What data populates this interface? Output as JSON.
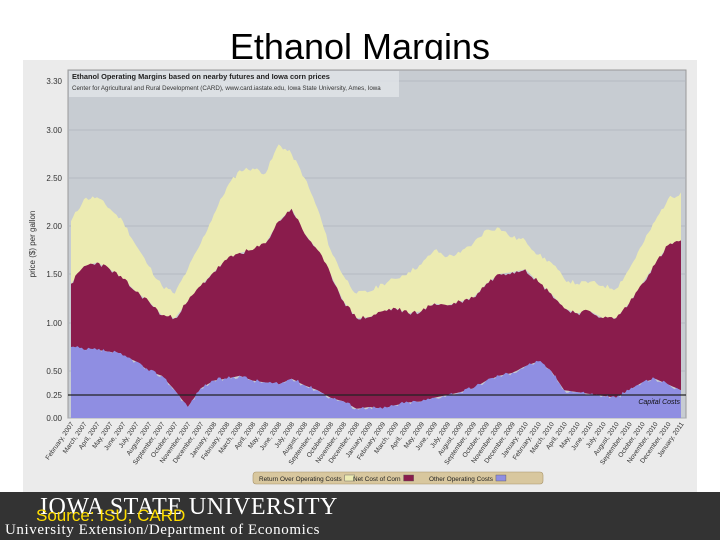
{
  "slide": {
    "title": "Ethanol Margins",
    "source_note": "Source: ISU, CARD",
    "footer_logo": "IOWA STATE UNIVERSITY",
    "footer_subtitle": "University Extension/Department of Economics"
  },
  "colors": {
    "return_over": "#ecebb2",
    "net_corn": "#8a1c4c",
    "other_costs": "#8f8ee2",
    "plot_bg": "#c7ccd2",
    "frame_bg": "#ebebeb",
    "capital_line": "#222222",
    "footer_bg": "#333333",
    "source_text": "#ffdd00"
  },
  "chart_data": {
    "type": "area",
    "stacked": true,
    "title": "Ethanol Operating Margins based on nearby futures and Iowa corn prices",
    "subtitle": "Center for Agricultural and Rural Development (CARD), www.card.iastate.edu, Iowa State University, Ames, Iowa",
    "ylabel": "price ($) per gallon",
    "y_ticks": [
      "3.30",
      "3.00",
      "2.50",
      "2.00",
      "1.50",
      "1.00",
      "0.50",
      "0.25",
      "0.00"
    ],
    "grid": true,
    "legend_placement": "bottom",
    "x_tick_labels": [
      "February, 2007",
      "March, 2007",
      "April, 2007",
      "May, 2007",
      "June, 2007",
      "July, 2007",
      "August, 2007",
      "September, 2007",
      "October, 2007",
      "November, 2007",
      "December, 2007",
      "January, 2008",
      "February, 2008",
      "March, 2008",
      "April, 2008",
      "May, 2008",
      "June, 2008",
      "July, 2008",
      "August, 2008",
      "September, 2008",
      "October, 2008",
      "November, 2008",
      "December, 2008",
      "January, 2009",
      "February, 2009",
      "March, 2009",
      "April, 2009",
      "May, 2009",
      "June, 2009",
      "July, 2009",
      "August, 2009",
      "September, 2009",
      "October, 2009",
      "November, 2009",
      "December, 2009",
      "January, 2010",
      "February, 2010",
      "March, 2010",
      "April, 2010",
      "May, 2010",
      "June, 2010",
      "July, 2010",
      "August, 2010",
      "September, 2010",
      "October, 2010",
      "November, 2010",
      "December, 2010",
      "January, 2011"
    ],
    "legend": [
      {
        "label": "Return Over Operating Costs",
        "color_key": "return_over"
      },
      {
        "label": "Net Cost of Corn",
        "color_key": "net_corn"
      },
      {
        "label": "Other Operating Costs",
        "color_key": "other_costs"
      }
    ],
    "reference_line": {
      "label": "Capital Costs",
      "value": 0.25
    },
    "x_index": [
      0,
      1,
      2,
      3,
      4,
      5,
      6,
      7,
      8,
      9,
      10,
      11,
      12,
      13,
      14,
      15,
      16,
      17,
      18,
      19,
      20,
      21,
      22,
      23,
      24,
      25,
      26,
      27,
      28,
      29,
      30,
      31,
      32,
      33,
      34,
      35,
      36,
      37,
      38,
      39,
      40,
      41,
      42,
      43,
      44,
      45,
      46,
      47
    ],
    "series": [
      {
        "name": "Other Operating Costs",
        "color_key": "other_costs",
        "top": [
          0.75,
          0.72,
          0.72,
          0.7,
          0.66,
          0.6,
          0.5,
          0.45,
          0.3,
          0.12,
          0.32,
          0.4,
          0.42,
          0.45,
          0.4,
          0.38,
          0.36,
          0.42,
          0.35,
          0.3,
          0.22,
          0.18,
          0.1,
          0.12,
          0.1,
          0.14,
          0.17,
          0.18,
          0.22,
          0.25,
          0.28,
          0.32,
          0.4,
          0.45,
          0.48,
          0.55,
          0.6,
          0.5,
          0.3,
          0.28,
          0.26,
          0.24,
          0.22,
          0.3,
          0.38,
          0.42,
          0.36,
          0.3
        ]
      },
      {
        "name": "Net Cost of Corn",
        "color_key": "net_corn",
        "top": [
          1.4,
          1.58,
          1.62,
          1.55,
          1.45,
          1.32,
          1.22,
          1.08,
          1.05,
          1.22,
          1.38,
          1.52,
          1.65,
          1.72,
          1.75,
          1.82,
          2.05,
          2.18,
          1.92,
          1.75,
          1.5,
          1.22,
          1.05,
          1.06,
          1.12,
          1.15,
          1.1,
          1.12,
          1.2,
          1.18,
          1.22,
          1.26,
          1.4,
          1.5,
          1.52,
          1.55,
          1.42,
          1.3,
          1.15,
          1.1,
          1.12,
          1.05,
          1.05,
          1.2,
          1.4,
          1.6,
          1.8,
          1.85
        ]
      },
      {
        "name": "Return Over Operating Costs",
        "color_key": "return_over",
        "top": [
          2.05,
          2.28,
          2.3,
          2.18,
          2.05,
          1.8,
          1.58,
          1.38,
          1.3,
          1.55,
          1.82,
          2.12,
          2.4,
          2.58,
          2.6,
          2.55,
          2.85,
          2.75,
          2.5,
          2.18,
          1.75,
          1.48,
          1.3,
          1.32,
          1.4,
          1.45,
          1.52,
          1.6,
          1.75,
          1.68,
          1.72,
          1.82,
          1.96,
          1.98,
          1.88,
          1.85,
          1.7,
          1.62,
          1.45,
          1.4,
          1.42,
          1.38,
          1.35,
          1.55,
          1.8,
          2.05,
          2.28,
          2.35
        ]
      }
    ]
  }
}
